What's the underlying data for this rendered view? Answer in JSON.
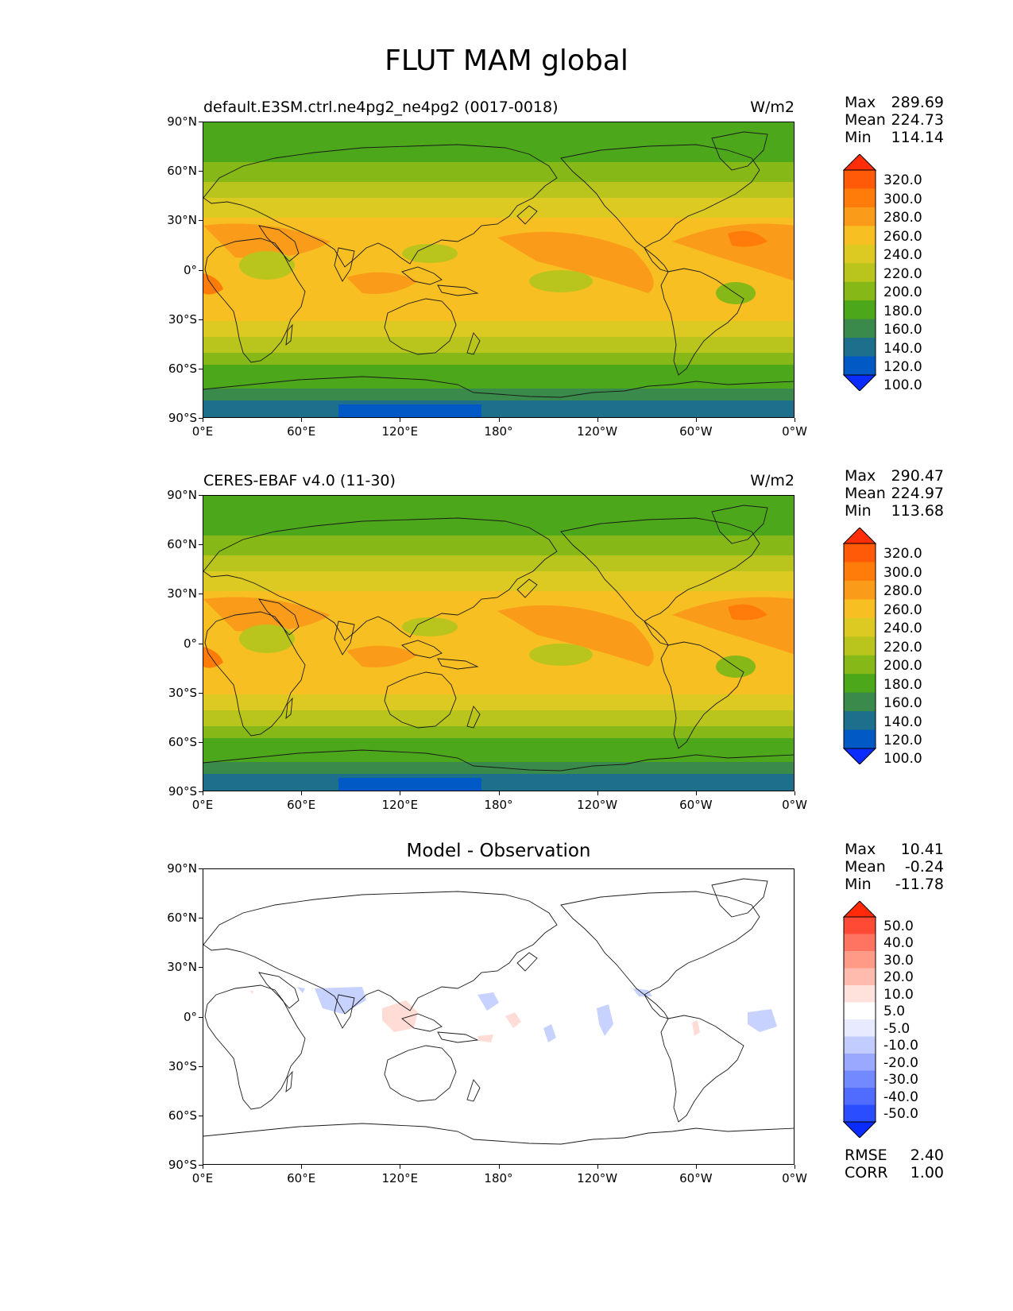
{
  "figure": {
    "title": "FLUT MAM global"
  },
  "axes": {
    "lat_ticks": [
      "90°N",
      "60°N",
      "30°N",
      "0°",
      "30°S",
      "60°S",
      "90°S"
    ],
    "lon_ticks": [
      "0°E",
      "60°E",
      "120°E",
      "180°",
      "120°W",
      "60°W",
      "0°W"
    ]
  },
  "panels": [
    {
      "title": "default.E3SM.ctrl.ne4pg2_ne4pg2 (0017-0018)",
      "unit": "W/m2",
      "stats": {
        "max_label": "Max",
        "max": "289.69",
        "mean_label": "Mean",
        "mean": "224.73",
        "min_label": "Min",
        "min": "114.14"
      },
      "colorbar": {
        "colors": [
          "#0a2cff",
          "#0059c5",
          "#1e6f8b",
          "#3a8a4b",
          "#4ca71a",
          "#86b817",
          "#b9c51c",
          "#dcc921",
          "#f8bf22",
          "#fa9c1a",
          "#ff7b0a",
          "#ff5a08",
          "#ff2d08"
        ],
        "labels": [
          "320.0",
          "300.0",
          "280.0",
          "260.0",
          "240.0",
          "220.0",
          "200.0",
          "180.0",
          "160.0",
          "140.0",
          "120.0",
          "100.0"
        ]
      }
    },
    {
      "title": "CERES-EBAF v4.0 (11-30)",
      "unit": "W/m2",
      "stats": {
        "max_label": "Max",
        "max": "290.47",
        "mean_label": "Mean",
        "mean": "224.97",
        "min_label": "Min",
        "min": "113.68"
      },
      "colorbar": {
        "colors": [
          "#0a2cff",
          "#0059c5",
          "#1e6f8b",
          "#3a8a4b",
          "#4ca71a",
          "#86b817",
          "#b9c51c",
          "#dcc921",
          "#f8bf22",
          "#fa9c1a",
          "#ff7b0a",
          "#ff5a08",
          "#ff2d08"
        ],
        "labels": [
          "320.0",
          "300.0",
          "280.0",
          "260.0",
          "240.0",
          "220.0",
          "200.0",
          "180.0",
          "160.0",
          "140.0",
          "120.0",
          "100.0"
        ]
      }
    },
    {
      "title": "Model - Observation",
      "unit": "",
      "stats": {
        "max_label": "Max",
        "max": "10.41",
        "mean_label": "Mean",
        "mean": "-0.24",
        "min_label": "Min",
        "min": "-11.78"
      },
      "colorbar": {
        "colors": [
          "#0a2cff",
          "#2a4dff",
          "#4f6cff",
          "#7389ff",
          "#9aa8ff",
          "#c3ccff",
          "#e8ebff",
          "#ffffff",
          "#ffe2dc",
          "#ffbcae",
          "#ff9a86",
          "#ff7360",
          "#ff4a35",
          "#ff2a0a"
        ],
        "labels": [
          "50.0",
          "40.0",
          "30.0",
          "20.0",
          "10.0",
          "5.0",
          "-5.0",
          "-10.0",
          "-20.0",
          "-30.0",
          "-40.0",
          "-50.0"
        ]
      },
      "rmse_label": "RMSE",
      "rmse": "2.40",
      "corr_label": "CORR",
      "corr": "1.00"
    }
  ]
}
